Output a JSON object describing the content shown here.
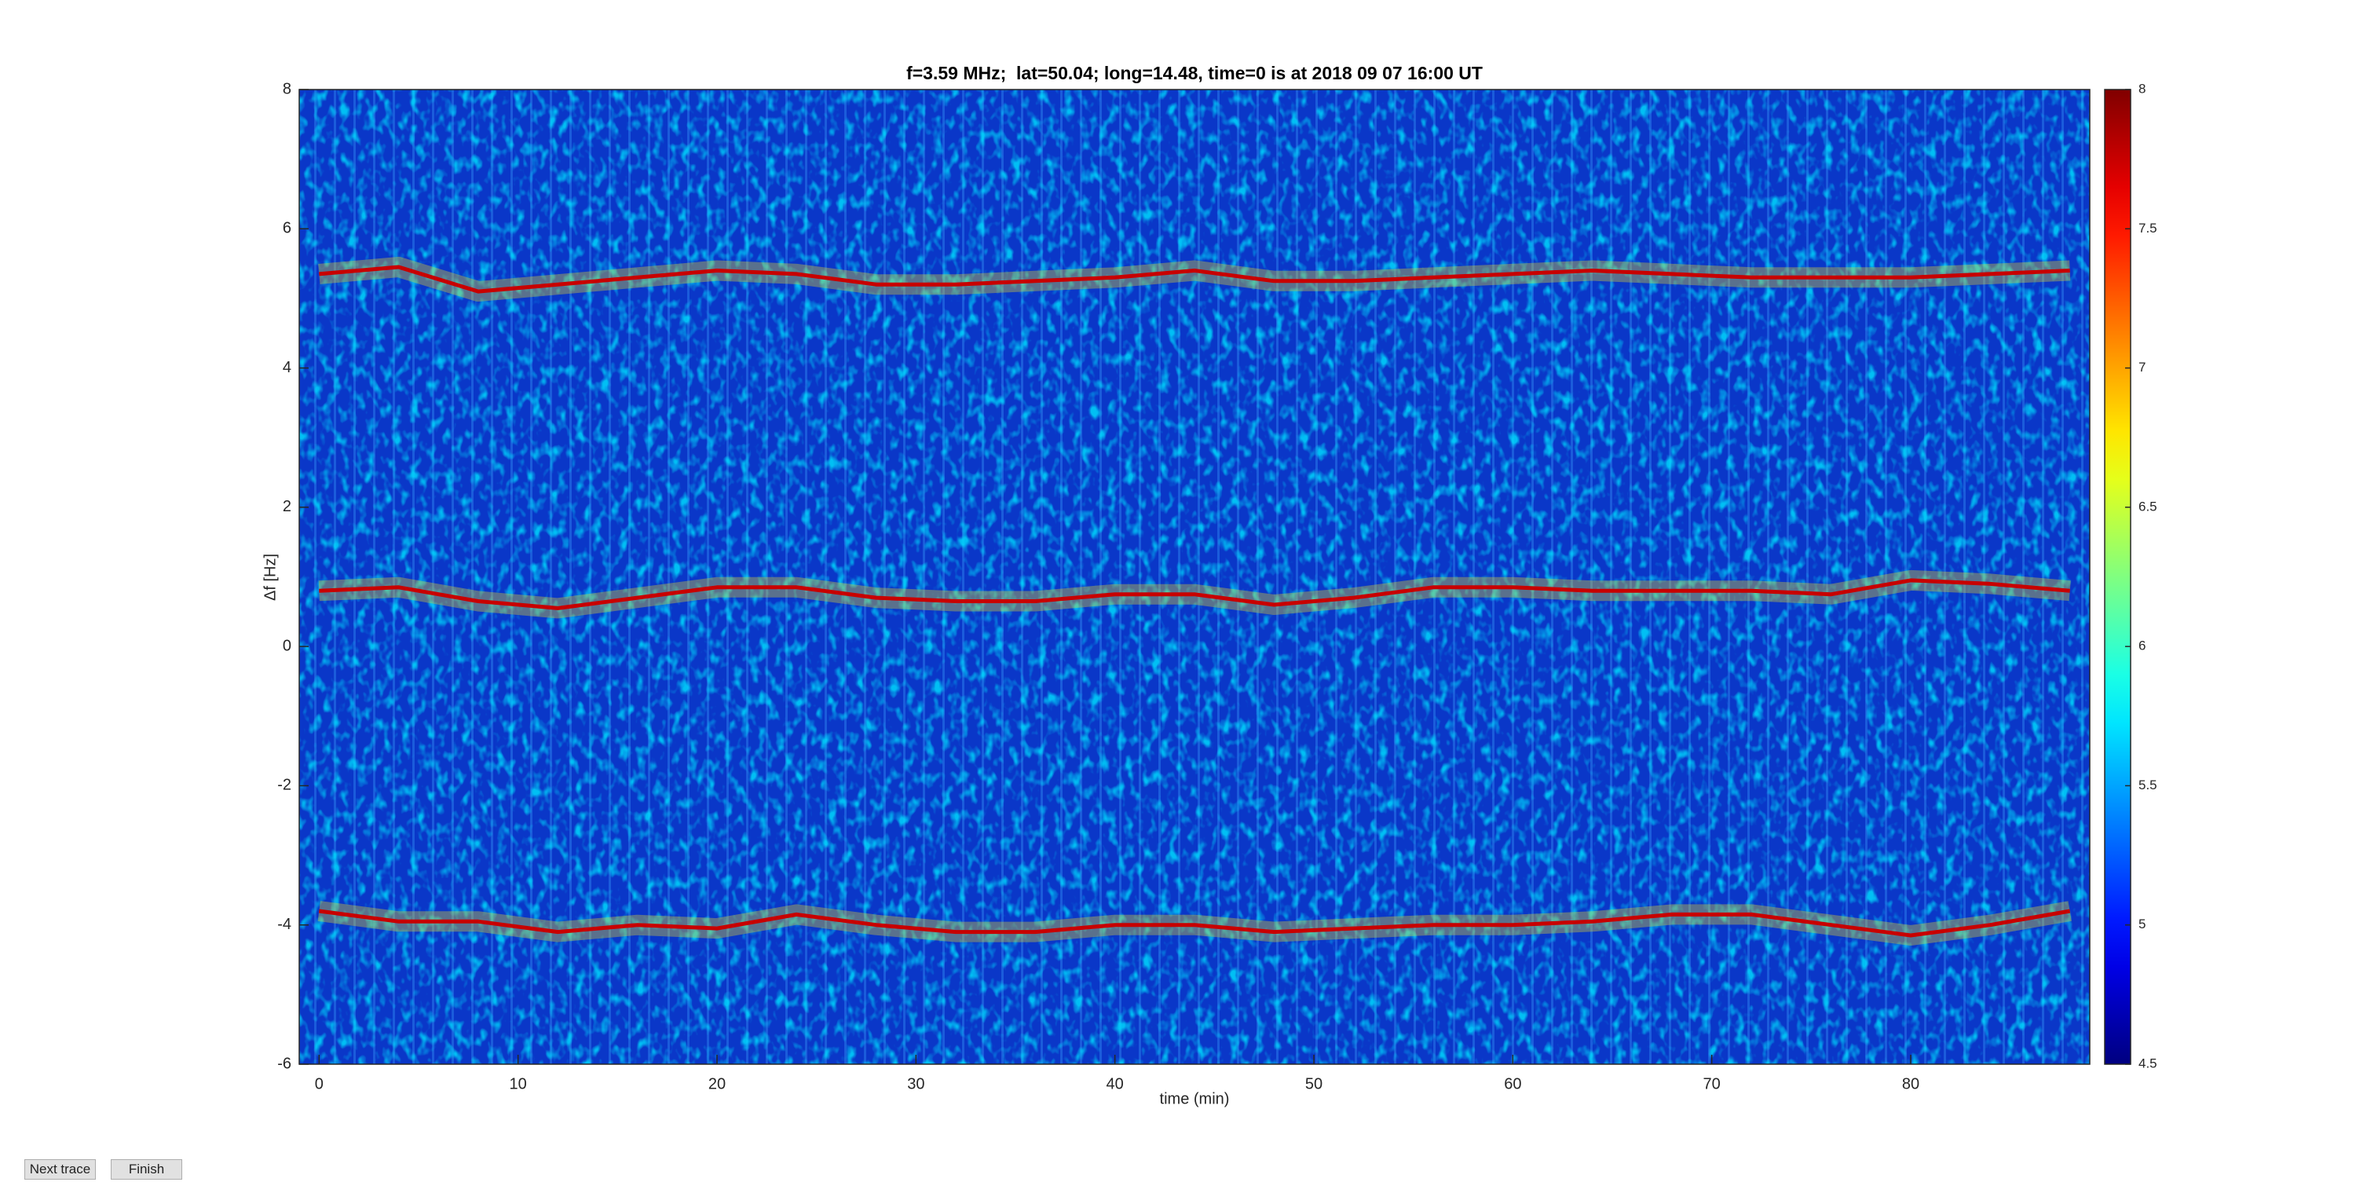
{
  "chart_data": {
    "type": "line",
    "title": "f=3.59 MHz;  lat=50.04; long=14.48, time=0 is at 2018 09 07 16:00 UT",
    "x_label": "time (min)",
    "y_label": "Δf [Hz]",
    "x": [
      0,
      4,
      8,
      12,
      16,
      20,
      24,
      28,
      32,
      36,
      40,
      44,
      48,
      52,
      56,
      60,
      64,
      68,
      72,
      76,
      80,
      84,
      88
    ],
    "series": [
      {
        "color": "#c80000",
        "values": [
          5.35,
          5.45,
          5.1,
          5.2,
          5.3,
          5.4,
          5.35,
          5.2,
          5.2,
          5.25,
          5.3,
          5.4,
          5.25,
          5.25,
          5.3,
          5.35,
          5.4,
          5.35,
          5.3,
          5.3,
          5.3,
          5.35,
          5.4
        ]
      },
      {
        "color": "#c80000",
        "values": [
          0.8,
          0.85,
          0.65,
          0.55,
          0.7,
          0.85,
          0.85,
          0.7,
          0.65,
          0.65,
          0.75,
          0.75,
          0.6,
          0.7,
          0.85,
          0.85,
          0.8,
          0.8,
          0.8,
          0.75,
          0.95,
          0.9,
          0.8
        ]
      },
      {
        "color": "#c80000",
        "values": [
          -3.8,
          -3.95,
          -3.95,
          -4.1,
          -4.0,
          -4.05,
          -3.85,
          -4.0,
          -4.1,
          -4.1,
          -4.0,
          -4.0,
          -4.1,
          -4.05,
          -4.0,
          -4.0,
          -3.95,
          -3.85,
          -3.85,
          -4.0,
          -4.15,
          -4.0,
          -3.8
        ]
      }
    ],
    "xlim": [
      -1,
      89
    ],
    "xticks": [
      0,
      10,
      20,
      30,
      40,
      50,
      60,
      70,
      80
    ],
    "ylim": [
      -6,
      8
    ],
    "yticks": [
      -6,
      -4,
      -2,
      0,
      2,
      4,
      6,
      8
    ],
    "colormap": "jet",
    "clim": [
      4.5,
      8
    ],
    "cticks": [
      4.5,
      5,
      5.5,
      6,
      6.5,
      7,
      7.5,
      8
    ]
  },
  "buttons": [
    "Next trace",
    "Finish"
  ]
}
